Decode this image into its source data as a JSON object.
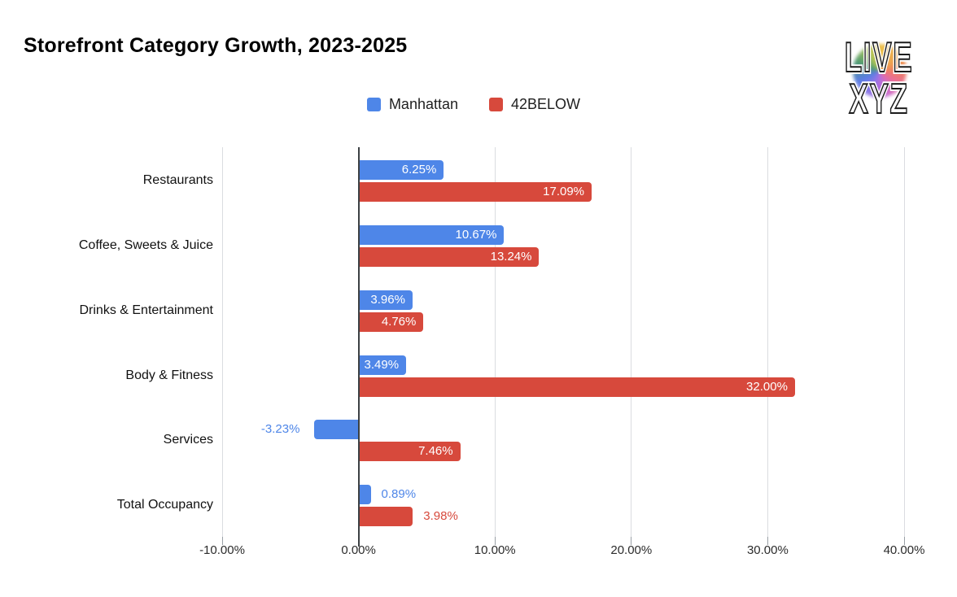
{
  "logo": {
    "line1": "LIVE",
    "line2": "XYZ"
  },
  "colors": {
    "manhattan": "#4e86e8",
    "below42": "#d7493c",
    "grid": "#dadce0",
    "axis": "#3c4043",
    "tick": "#9aa0a6",
    "axis_label": "#2b2b2b",
    "category_label": "#111111",
    "bar_label_inside": "#ffffff",
    "background": "#ffffff"
  },
  "chart_data": {
    "type": "bar",
    "orientation": "horizontal",
    "title": "Storefront Category Growth, 2023-2025",
    "categories": [
      "Restaurants",
      "Coffee, Sweets & Juice",
      "Drinks & Entertainment",
      "Body & Fitness",
      "Services",
      "Total Occupancy"
    ],
    "series": [
      {
        "name": "Manhattan",
        "color": "#4e86e8",
        "values": [
          6.25,
          10.67,
          3.96,
          3.49,
          -3.23,
          0.89
        ],
        "labels": [
          "6.25%",
          "10.67%",
          "3.96%",
          "3.49%",
          "-3.23%",
          "0.89%"
        ],
        "label_placement": [
          "inside",
          "inside",
          "inside",
          "inside",
          "outside-left",
          "outside-right"
        ]
      },
      {
        "name": "42BELOW",
        "color": "#d7493c",
        "values": [
          17.09,
          13.24,
          4.76,
          32.0,
          7.46,
          3.98
        ],
        "labels": [
          "17.09%",
          "13.24%",
          "4.76%",
          "32.00%",
          "7.46%",
          "3.98%"
        ],
        "label_placement": [
          "inside",
          "inside",
          "inside",
          "inside",
          "inside",
          "outside-right"
        ]
      }
    ],
    "x_axis": {
      "min": -10,
      "max": 40,
      "ticks": [
        -10,
        0,
        10,
        20,
        30,
        40
      ],
      "tick_labels": [
        "-10.00%",
        "0.00%",
        "10.00%",
        "20.00%",
        "30.00%",
        "40.00%"
      ],
      "format": "percent"
    },
    "grid": true,
    "legend_position": "top"
  }
}
